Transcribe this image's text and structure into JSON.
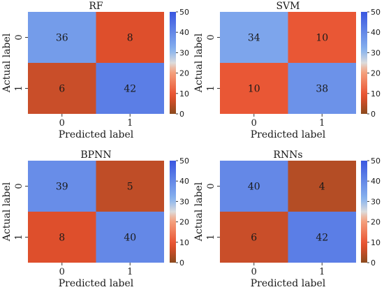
{
  "chart_data": [
    {
      "type": "heatmap",
      "title": "RF",
      "xlabel": "Predicted label",
      "ylabel": "Actual label",
      "x_categories": [
        "0",
        "1"
      ],
      "y_categories": [
        "0",
        "1"
      ],
      "values": [
        [
          36,
          8
        ],
        [
          6,
          42
        ]
      ],
      "colorbar": {
        "range": [
          0,
          50
        ],
        "ticks": [
          "0",
          "10",
          "20",
          "30",
          "40",
          "50"
        ]
      }
    },
    {
      "type": "heatmap",
      "title": "SVM",
      "xlabel": "Predicted label",
      "ylabel": "Actual label",
      "x_categories": [
        "0",
        "1"
      ],
      "y_categories": [
        "0",
        "1"
      ],
      "values": [
        [
          34,
          10
        ],
        [
          10,
          38
        ]
      ],
      "colorbar": {
        "range": [
          0,
          50
        ],
        "ticks": [
          "0",
          "10",
          "20",
          "30",
          "40",
          "50"
        ]
      }
    },
    {
      "type": "heatmap",
      "title": "BPNN",
      "xlabel": "Predicted label",
      "ylabel": "Actual label",
      "x_categories": [
        "0",
        "1"
      ],
      "y_categories": [
        "0",
        "1"
      ],
      "values": [
        [
          39,
          5
        ],
        [
          8,
          40
        ]
      ],
      "colorbar": {
        "range": [
          0,
          50
        ],
        "ticks": [
          "0",
          "10",
          "20",
          "30",
          "40",
          "50"
        ]
      }
    },
    {
      "type": "heatmap",
      "title": "RNNs",
      "xlabel": "Predicted label",
      "ylabel": "Actual label",
      "x_categories": [
        "0",
        "1"
      ],
      "y_categories": [
        "0",
        "1"
      ],
      "values": [
        [
          40,
          4
        ],
        [
          6,
          42
        ]
      ],
      "colorbar": {
        "range": [
          0,
          50
        ],
        "ticks": [
          "0",
          "10",
          "20",
          "30",
          "40",
          "50"
        ]
      }
    }
  ],
  "colormap": {
    "low": "#8b4a1e",
    "mid_low": "#e8502e",
    "mid_high": "#89b4ee",
    "high": "#3a57e0"
  }
}
